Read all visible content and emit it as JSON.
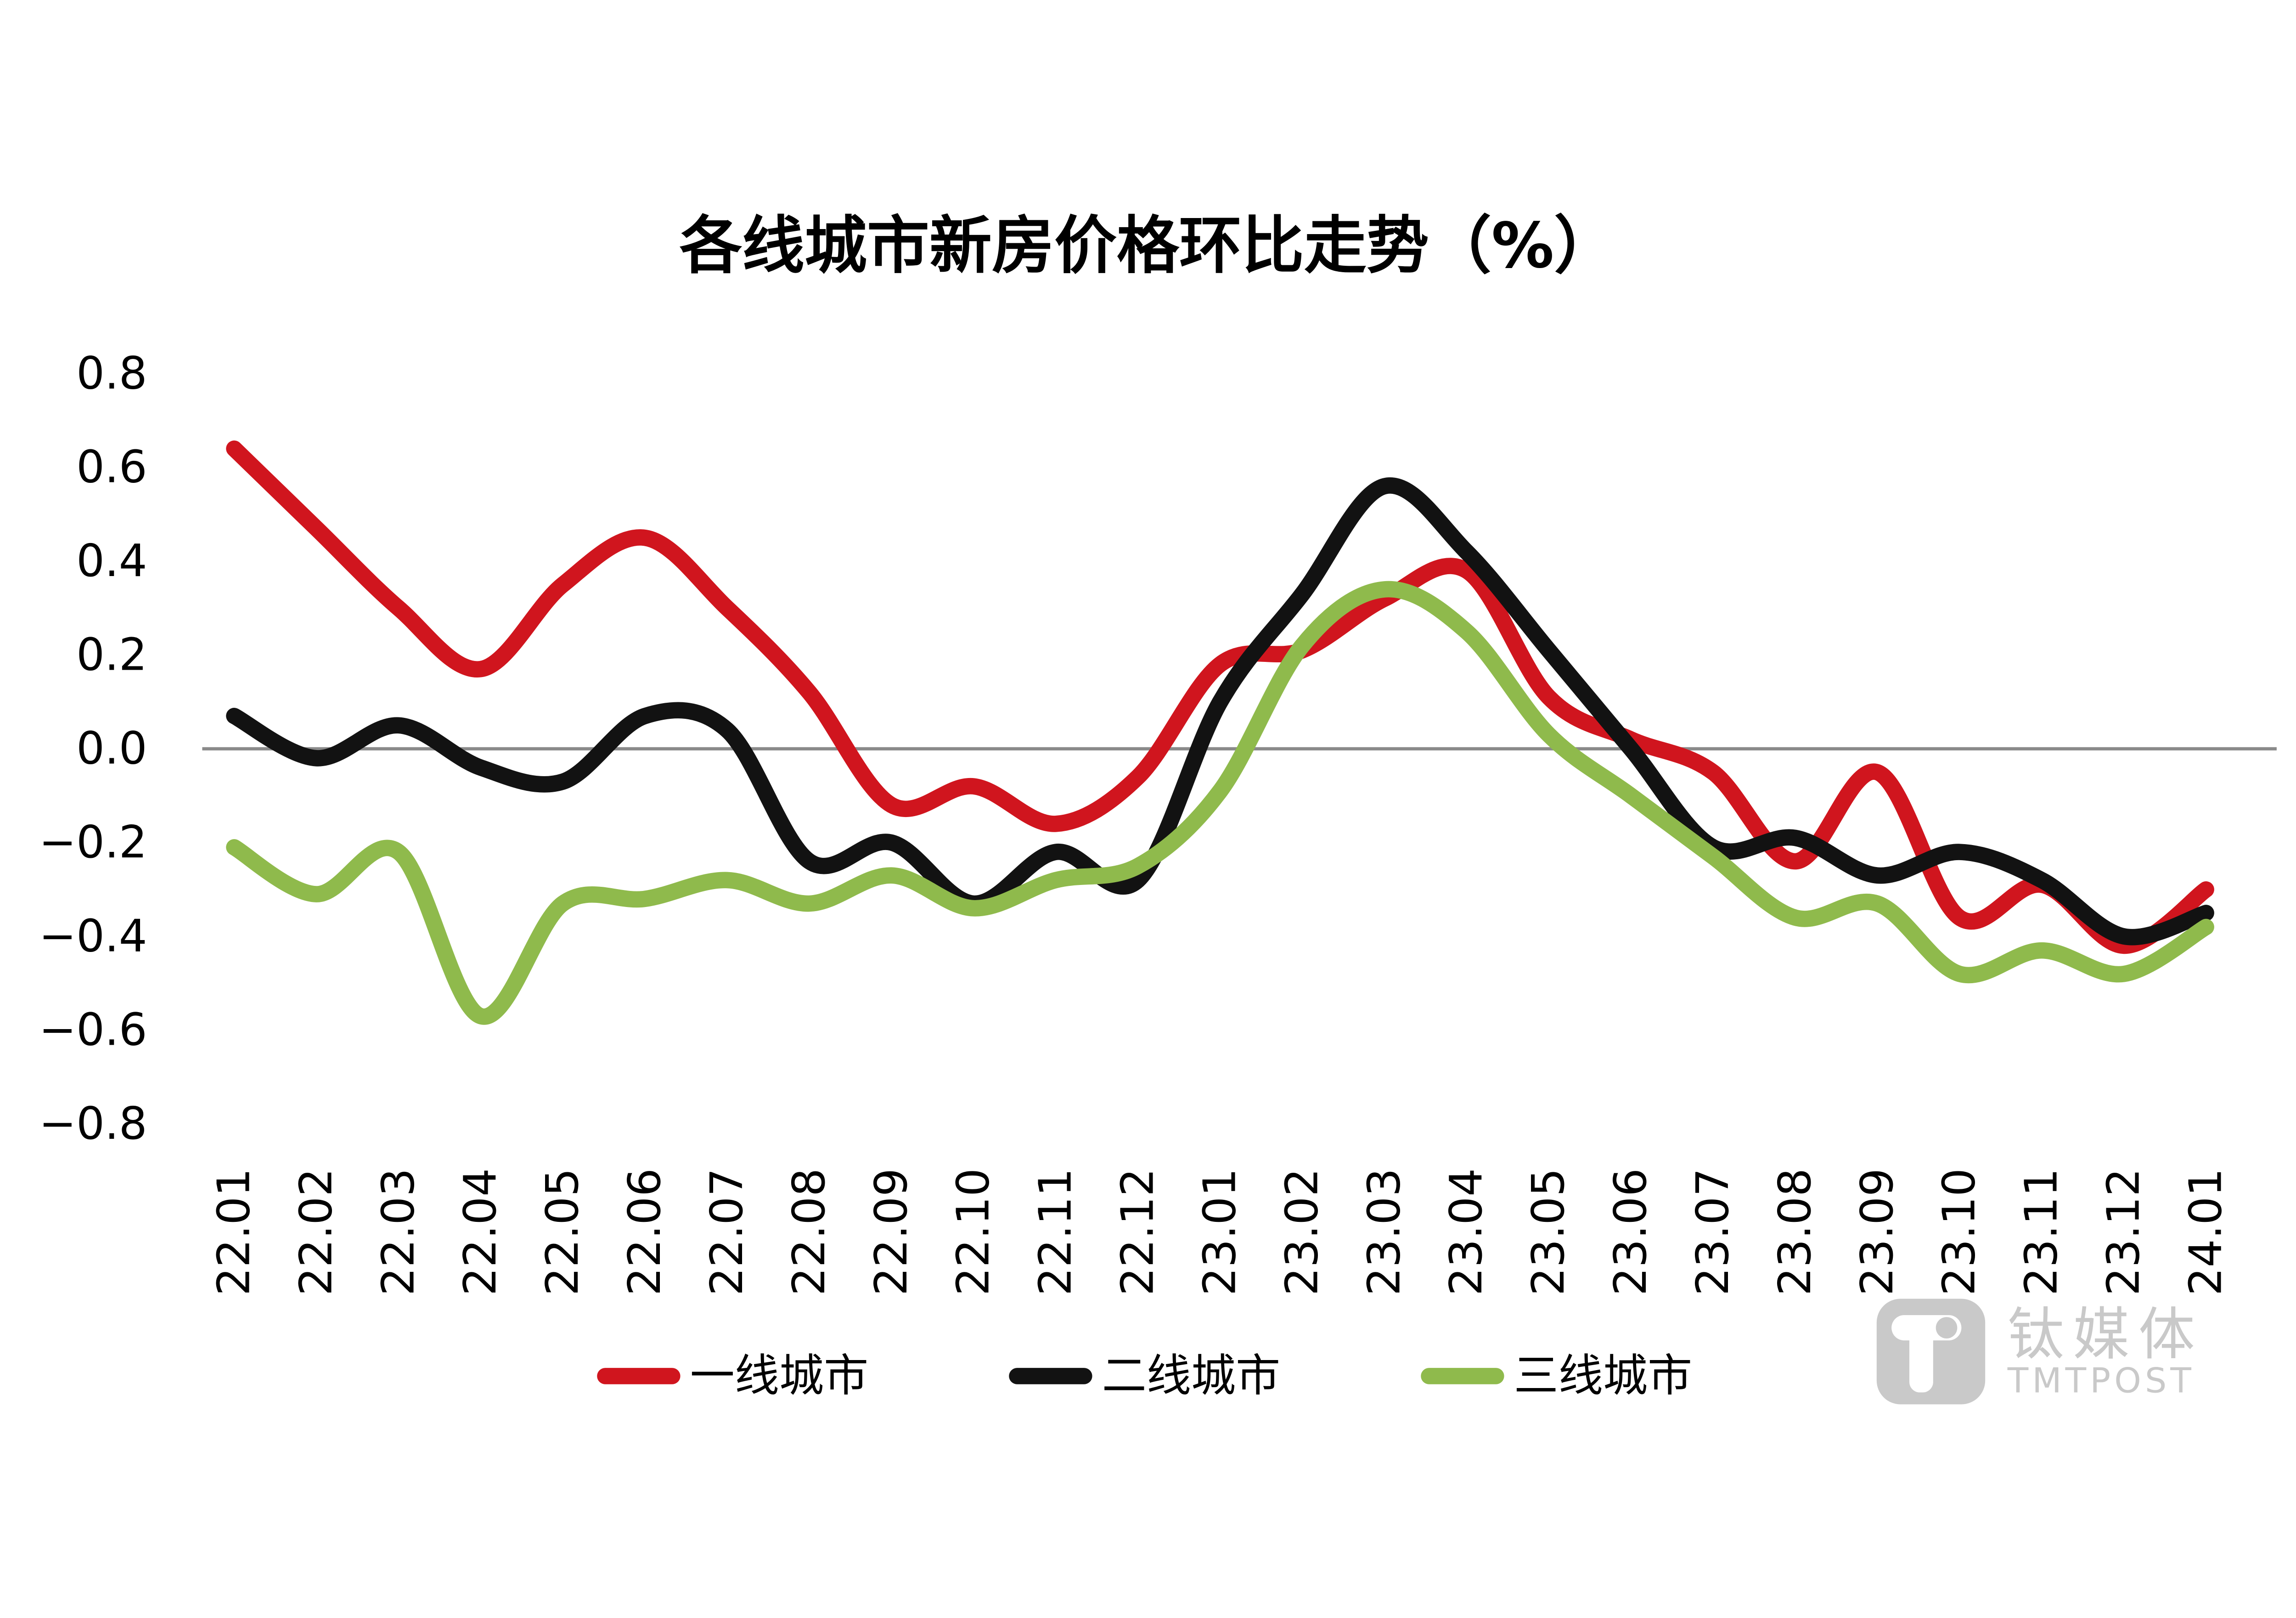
{
  "chart_data": {
    "type": "line",
    "title": "各线城市新房价格环比走势（%）",
    "categories": [
      "22.01",
      "22.02",
      "22.03",
      "22.04",
      "22.05",
      "22.06",
      "22.07",
      "22.08",
      "22.09",
      "22.10",
      "22.11",
      "22.12",
      "23.01",
      "23.02",
      "23.03",
      "23.04",
      "23.05",
      "23.06",
      "23.07",
      "23.08",
      "23.09",
      "23.10",
      "23.11",
      "23.12",
      "24.01"
    ],
    "series": [
      {
        "name": "一线城市",
        "color": "#D0151E",
        "values": [
          0.64,
          0.47,
          0.3,
          0.17,
          0.35,
          0.45,
          0.3,
          0.12,
          -0.12,
          -0.08,
          -0.16,
          -0.06,
          0.18,
          0.21,
          0.32,
          0.38,
          0.11,
          0.02,
          -0.05,
          -0.24,
          -0.05,
          -0.36,
          -0.29,
          -0.42,
          -0.3
        ]
      },
      {
        "name": "二线城市",
        "color": "#121212",
        "values": [
          0.07,
          -0.02,
          0.05,
          -0.04,
          -0.07,
          0.07,
          0.04,
          -0.24,
          -0.2,
          -0.33,
          -0.22,
          -0.28,
          0.1,
          0.33,
          0.56,
          0.42,
          0.21,
          0.0,
          -0.21,
          -0.19,
          -0.27,
          -0.22,
          -0.28,
          -0.4,
          -0.35
        ]
      },
      {
        "name": "三线城市",
        "color": "#8FBA4C",
        "values": [
          -0.21,
          -0.31,
          -0.22,
          -0.57,
          -0.33,
          -0.32,
          -0.28,
          -0.33,
          -0.27,
          -0.34,
          -0.28,
          -0.25,
          -0.09,
          0.22,
          0.34,
          0.25,
          0.03,
          -0.1,
          -0.23,
          -0.36,
          -0.33,
          -0.48,
          -0.43,
          -0.48,
          -0.38
        ]
      }
    ],
    "ylim": [
      -0.8,
      0.8
    ],
    "y_tick_labels": [
      "0.8",
      "0.6",
      "0.4",
      "0.2",
      "0.0",
      "−0.2",
      "−0.4",
      "−0.6",
      "−0.8"
    ],
    "y_tick_values": [
      0.8,
      0.6,
      0.4,
      0.2,
      0.0,
      -0.2,
      -0.4,
      -0.6,
      -0.8
    ],
    "xlabel": "",
    "ylabel": "",
    "grid": "zero-line-only",
    "zero_line_color": "#8A8A8A",
    "legend_position": "bottom-center",
    "line_style": "smooth"
  },
  "watermark": {
    "logo_icon": "tmtpost-t-logo",
    "brand_cn": "钛媒体",
    "brand_en": "TMTPOST",
    "color": "#C9C9C9"
  }
}
